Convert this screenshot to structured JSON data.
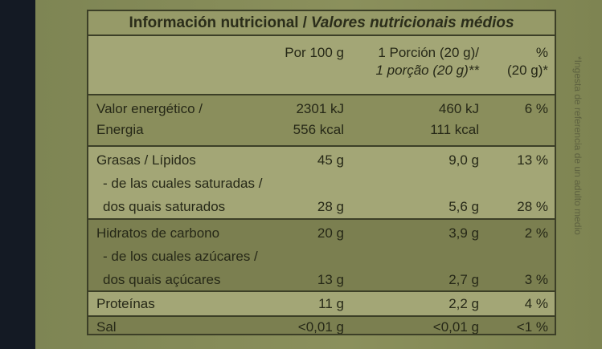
{
  "title": {
    "es": "Información nutricional",
    "pt": "Valores nutricionais médios"
  },
  "header": {
    "per100": "Por 100 g",
    "portion_es": "1 Porción (20 g)/",
    "portion_pt": "1 porção (20 g)**",
    "pct_top": "%",
    "pct_bottom": "(20 g)*"
  },
  "rows": {
    "energy": {
      "label1": "Valor energético /",
      "label2": "Energia",
      "per100_1": "2301 kJ",
      "per100_2": "556 kcal",
      "portion_1": "460 kJ",
      "portion_2": "111 kcal",
      "pct": "6 %"
    },
    "fat": {
      "label1": "Grasas / Lípidos",
      "label2": "- de las cuales saturadas /",
      "label3": "dos quais saturados",
      "per100_1": "45 g",
      "per100_3": "28 g",
      "portion_1": "9,0 g",
      "portion_3": "5,6 g",
      "pct_1": "13 %",
      "pct_3": "28 %"
    },
    "carbs": {
      "label1": "Hidratos de carbono",
      "label2": "- de los cuales azúcares /",
      "label3": "dos quais açúcares",
      "per100_1": "20 g",
      "per100_3": "13 g",
      "portion_1": "3,9 g",
      "portion_3": "2,7 g",
      "pct_1": "2 %",
      "pct_3": "3 %"
    },
    "protein": {
      "label": "Proteínas",
      "per100": "11 g",
      "portion": "2,2 g",
      "pct": "4 %"
    },
    "salt": {
      "label": "Sal",
      "per100": "<0,01 g",
      "portion": "<0,01 g",
      "pct": "<1 %"
    }
  },
  "side_note": "*Ingesta de referencia de un adulto medio"
}
